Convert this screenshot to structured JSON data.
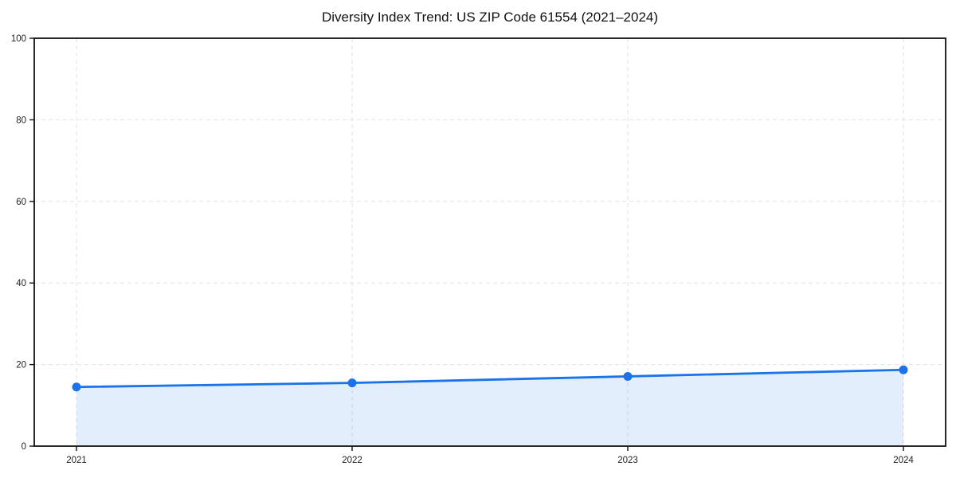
{
  "chart_data": {
    "type": "area",
    "title": "Diversity Index Trend: US ZIP Code 61554 (2021–2024)",
    "x": [
      2021,
      2022,
      2023,
      2024
    ],
    "xticklabels": [
      "2021",
      "2022",
      "2023",
      "2024"
    ],
    "series": [
      {
        "name": "Diversity Index",
        "values": [
          14.5,
          15.5,
          17.1,
          18.7
        ]
      }
    ],
    "xlabel": "",
    "ylabel": "",
    "ylim": [
      0,
      100
    ],
    "yticks": [
      0,
      20,
      40,
      60,
      80,
      100
    ],
    "grid": true,
    "grid_style": "dashed",
    "legend_position": "none",
    "colors": {
      "line": "#1a73e8",
      "marker": "#1a73e8",
      "fill": "#1a73e8",
      "fill_opacity": 0.12,
      "grid": "#e2e2e2",
      "spine": "#111111",
      "tick_text": "#222222",
      "background": "#ffffff"
    }
  }
}
